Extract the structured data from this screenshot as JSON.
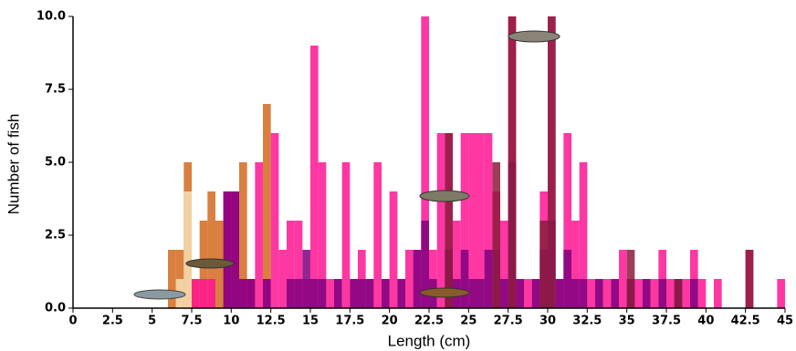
{
  "chart_data": {
    "type": "histogram",
    "xlabel": "Length (cm)",
    "ylabel": "Number of fish",
    "bins": [
      5.5,
      6,
      6.5,
      7,
      7.5,
      8,
      8.5,
      9,
      9.5,
      10,
      10.5,
      11,
      11.5,
      12,
      12.5,
      13,
      13.5,
      14,
      14.5,
      15,
      15.5,
      16,
      16.5,
      17,
      17.5,
      18,
      18.5,
      19,
      19.5,
      20,
      20.5,
      21,
      21.5,
      22,
      22.5,
      23,
      23.5,
      24,
      24.5,
      25,
      25.5,
      26,
      26.5,
      27,
      27.5,
      28,
      28.5,
      29,
      29.5,
      30,
      30.5,
      31,
      31.5,
      32,
      32.5,
      33,
      33.5,
      34,
      34.5,
      35,
      35.5,
      36,
      36.5,
      37,
      37.5,
      38,
      38.5,
      39,
      39.5,
      40,
      40.5,
      41,
      41.5,
      42,
      42.5,
      43,
      43.5,
      44,
      44.5,
      45
    ],
    "series": [
      {
        "color": "#d2691e",
        "values": [
          0,
          2,
          2,
          5,
          1,
          3,
          4,
          3,
          4,
          4,
          5,
          1,
          0,
          7,
          0,
          0,
          0,
          0,
          0,
          0,
          0,
          0,
          0,
          0,
          0,
          0,
          0,
          0,
          0,
          0,
          0,
          0,
          0,
          0,
          0,
          0,
          0,
          0,
          0,
          0,
          0,
          0,
          0,
          0,
          0,
          0,
          0,
          0,
          0,
          0,
          0,
          0,
          0,
          0,
          0,
          0,
          0,
          0,
          0,
          0,
          0,
          0,
          0,
          0,
          0,
          0,
          0,
          0,
          0,
          0,
          0,
          0,
          0,
          0,
          0,
          0,
          0,
          0,
          0
        ]
      },
      {
        "color": "#f5deb3",
        "values": [
          0,
          0,
          1,
          4,
          0,
          0,
          0,
          0,
          0,
          0,
          0,
          0,
          0,
          0,
          0,
          0,
          0,
          0,
          0,
          0,
          0,
          0,
          0,
          0,
          0,
          0,
          0,
          0,
          0,
          0,
          0,
          0,
          0,
          0,
          0,
          0,
          0,
          0,
          0,
          0,
          0,
          0,
          0,
          0,
          0,
          0,
          0,
          0,
          0,
          0,
          0,
          0,
          0,
          0,
          0,
          0,
          0,
          0,
          0,
          0,
          0,
          0,
          0,
          0,
          0,
          0,
          0,
          0,
          0,
          0,
          0,
          0,
          0,
          0,
          0,
          0,
          0,
          0,
          0
        ]
      },
      {
        "color": "#ff1493",
        "values": [
          0,
          0,
          0,
          0,
          1,
          1,
          1,
          0,
          4,
          4,
          1,
          1,
          5,
          1,
          6,
          2,
          3,
          3,
          1,
          9,
          5,
          1,
          1,
          5,
          1,
          2,
          1,
          5,
          1,
          4,
          1,
          2,
          2,
          10,
          2,
          6,
          6,
          3,
          6,
          6,
          6,
          6,
          4,
          3,
          10,
          1,
          1,
          1,
          4,
          10,
          1,
          6,
          3,
          5,
          1,
          1,
          1,
          1,
          2,
          1,
          1,
          1,
          1,
          2,
          1,
          1,
          1,
          2,
          1,
          0,
          1,
          0,
          0,
          0,
          2,
          0,
          0,
          0,
          1
        ]
      },
      {
        "color": "#800080",
        "values": [
          0,
          0,
          0,
          0,
          0,
          0,
          0,
          0,
          4,
          4,
          1,
          1,
          0,
          1,
          0,
          0,
          1,
          1,
          2,
          1,
          1,
          0,
          1,
          0,
          1,
          1,
          1,
          0,
          1,
          0,
          1,
          0,
          2,
          3,
          1,
          0,
          2,
          1,
          2,
          1,
          1,
          2,
          2,
          1,
          5,
          1,
          0,
          1,
          2,
          3,
          1,
          2,
          1,
          1,
          0,
          1,
          0,
          1,
          0,
          1,
          0,
          1,
          0,
          1,
          0,
          1,
          0,
          1,
          0,
          0,
          0,
          0,
          0,
          0,
          0,
          0,
          0,
          0,
          0
        ]
      },
      {
        "color": "#8b1c3c",
        "values": [
          0,
          0,
          0,
          0,
          0,
          0,
          0,
          0,
          0,
          0,
          0,
          0,
          0,
          0,
          0,
          0,
          0,
          0,
          0,
          0,
          0,
          0,
          0,
          0,
          0,
          0,
          0,
          0,
          0,
          0,
          0,
          0,
          0,
          0,
          0,
          0,
          6,
          0,
          0,
          0,
          0,
          0,
          5,
          0,
          10,
          0,
          0,
          0,
          3,
          10,
          0,
          0,
          0,
          0,
          0,
          0,
          0,
          0,
          0,
          2,
          0,
          0,
          0,
          0,
          0,
          1,
          0,
          0,
          0,
          0,
          0,
          0,
          0,
          0,
          2,
          0,
          0,
          0,
          0
        ]
      }
    ],
    "xlim": [
      0,
      45
    ],
    "ylim": [
      0,
      10
    ],
    "xticks": [
      0,
      2.5,
      5,
      7.5,
      10,
      12.5,
      15,
      17.5,
      20,
      22.5,
      25,
      27.5,
      30,
      32.5,
      35,
      37.5,
      40,
      42.5,
      45
    ],
    "yticks": [
      {
        "value": 0,
        "label": "0.0"
      },
      2.5,
      {
        "value": 5,
        "label": "5.0"
      },
      7.5,
      {
        "value": 10,
        "label": "10.0"
      }
    ]
  }
}
